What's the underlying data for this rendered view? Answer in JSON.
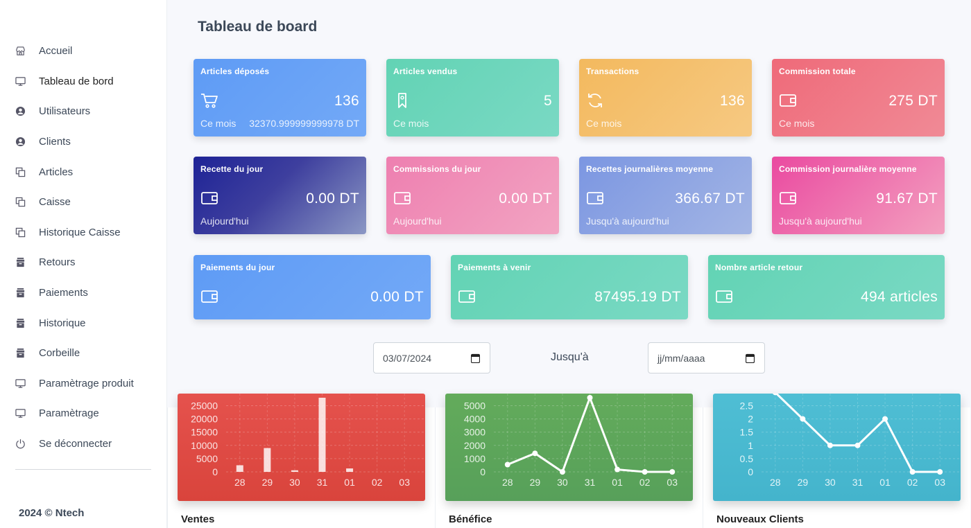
{
  "sidebar": {
    "items": [
      {
        "label": "Accueil",
        "icon": "store-icon"
      },
      {
        "label": "Tableau de bord",
        "icon": "monitor-icon"
      },
      {
        "label": "Utilisateurs",
        "icon": "user-circle-icon"
      },
      {
        "label": "Clients",
        "icon": "user-circle-icon"
      },
      {
        "label": "Articles",
        "icon": "copy-icon"
      },
      {
        "label": "Caisse",
        "icon": "copy-icon"
      },
      {
        "label": "Historique Caisse",
        "icon": "copy-icon"
      },
      {
        "label": "Retours",
        "icon": "box-icon"
      },
      {
        "label": "Paiements",
        "icon": "box-icon"
      },
      {
        "label": "Historique",
        "icon": "box-icon"
      },
      {
        "label": "Corbeille",
        "icon": "box-icon"
      },
      {
        "label": "Paramètrage produit",
        "icon": "monitor-icon"
      },
      {
        "label": "Paramètrage",
        "icon": "monitor-icon"
      },
      {
        "label": "Se déconnecter",
        "icon": "power-icon"
      }
    ],
    "footer": "2024 © Ntech"
  },
  "header": {
    "title": "Tableau de board"
  },
  "cards": [
    {
      "title": "Articles déposés",
      "value": "136",
      "sub": "Ce mois",
      "sub2": "32370.999999999978 DT",
      "icon": "cart-icon",
      "color": "#5e9bf5"
    },
    {
      "title": "Articles vendus",
      "value": "5",
      "sub": "Ce mois",
      "icon": "bookmark-icon",
      "color": "#62d3b4"
    },
    {
      "title": "Transactions",
      "value": "136",
      "sub": "Ce mois",
      "icon": "refresh-icon",
      "color": "#f3b95e"
    },
    {
      "title": "Commission totale",
      "value": "275 DT",
      "sub": "Ce mois",
      "icon": "wallet-icon",
      "color": "#ef6a79"
    },
    {
      "title": "Recette du jour",
      "value": "0.00 DT",
      "sub": "Aujourd'hui",
      "icon": "wallet-icon",
      "color": "#1e2396"
    },
    {
      "title": "Commissions du jour",
      "value": "0.00 DT",
      "sub": "Aujourd'hui",
      "icon": "wallet-icon",
      "color": "#ee7fb0"
    },
    {
      "title": "Recettes journalières moyenne",
      "value": "366.67 DT",
      "sub": "Jusqu'à aujourd'hui",
      "icon": "wallet-icon",
      "color": "#7b96e2"
    },
    {
      "title": "Commission journalière moyenne",
      "value": "91.67 DT",
      "sub": "Jusqu'à aujourd'hui",
      "icon": "wallet-icon",
      "color": "#ea4aa0"
    },
    {
      "title": "Paiements du jour",
      "value": "0.00 DT",
      "icon": "wallet-icon",
      "color": "#5e9bf5"
    },
    {
      "title": "Paiements à venir",
      "value": "87495.19 DT",
      "icon": "wallet-icon",
      "color": "#62d3b4"
    },
    {
      "title": "Nombre article retour",
      "value": "494 articles",
      "icon": "wallet-icon",
      "color": "#62d3b4"
    }
  ],
  "filter": {
    "start_value": "03/07/2024",
    "until_label": "Jusqu'à",
    "end_placeholder": "jj/mm/aaaa"
  },
  "charts": [
    {
      "label": "Ventes"
    },
    {
      "label": "Bénéfice"
    },
    {
      "label": "Nouveaux Clients"
    }
  ],
  "chart_data": [
    {
      "type": "bar",
      "categories": [
        "28",
        "29",
        "30",
        "31",
        "01",
        "02",
        "03"
      ],
      "values": [
        2500,
        9000,
        600,
        28000,
        1300,
        0,
        0
      ],
      "yticks": [
        "25000",
        "20000",
        "15000",
        "10000",
        "5000",
        "0"
      ],
      "ylim": [
        0,
        28000
      ],
      "title": "",
      "xlabel": "",
      "ylabel": "",
      "grid": true
    },
    {
      "type": "line",
      "categories": [
        "28",
        "29",
        "30",
        "31",
        "01",
        "02",
        "03"
      ],
      "values": [
        550,
        1400,
        0,
        5600,
        180,
        0,
        0
      ],
      "yticks": [
        "5000",
        "4000",
        "3000",
        "2000",
        "1000",
        "0"
      ],
      "ylim": [
        0,
        5600
      ],
      "title": "",
      "xlabel": "",
      "ylabel": "",
      "grid": true
    },
    {
      "type": "line",
      "categories": [
        "28",
        "29",
        "30",
        "31",
        "01",
        "02",
        "03"
      ],
      "values": [
        3,
        2,
        1,
        1,
        2,
        0,
        0
      ],
      "yticks": [
        "2.5",
        "2",
        "1.5",
        "1",
        "0.5",
        "0"
      ],
      "ylim": [
        0,
        2.8
      ],
      "title": "",
      "xlabel": "",
      "ylabel": "",
      "grid": true
    }
  ]
}
